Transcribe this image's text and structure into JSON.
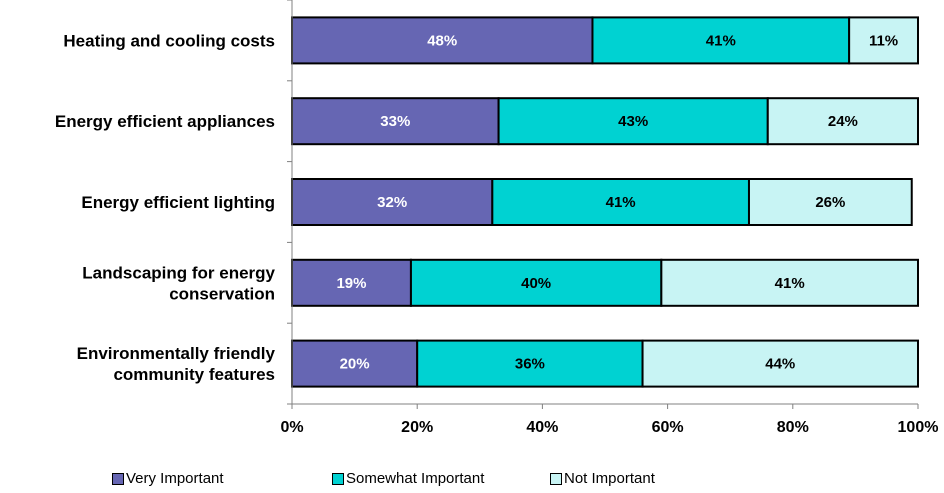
{
  "chart_data": {
    "type": "bar",
    "orientation": "horizontal",
    "stacked": "percent",
    "categories": [
      [
        "Heating and cooling costs"
      ],
      [
        "Energy efficient appliances"
      ],
      [
        "Energy efficient lighting"
      ],
      [
        "Landscaping for energy",
        "conservation"
      ],
      [
        "Environmentally friendly",
        "community features"
      ]
    ],
    "series": [
      {
        "name": "Very Important",
        "color": "#6666b3",
        "label_color": "#ffffff",
        "values": [
          48,
          33,
          32,
          19,
          20
        ]
      },
      {
        "name": "Somewhat Important",
        "color": "#00d2d2",
        "label_color": "#000000",
        "values": [
          41,
          43,
          41,
          40,
          36
        ]
      },
      {
        "name": "Not Important",
        "color": "#c8f4f4",
        "label_color": "#000000",
        "values": [
          11,
          24,
          26,
          41,
          44
        ]
      }
    ],
    "x_ticks": [
      "0%",
      "20%",
      "40%",
      "60%",
      "80%",
      "100%"
    ],
    "xlim": [
      0,
      100
    ],
    "grid": false,
    "legend": "bottom"
  }
}
